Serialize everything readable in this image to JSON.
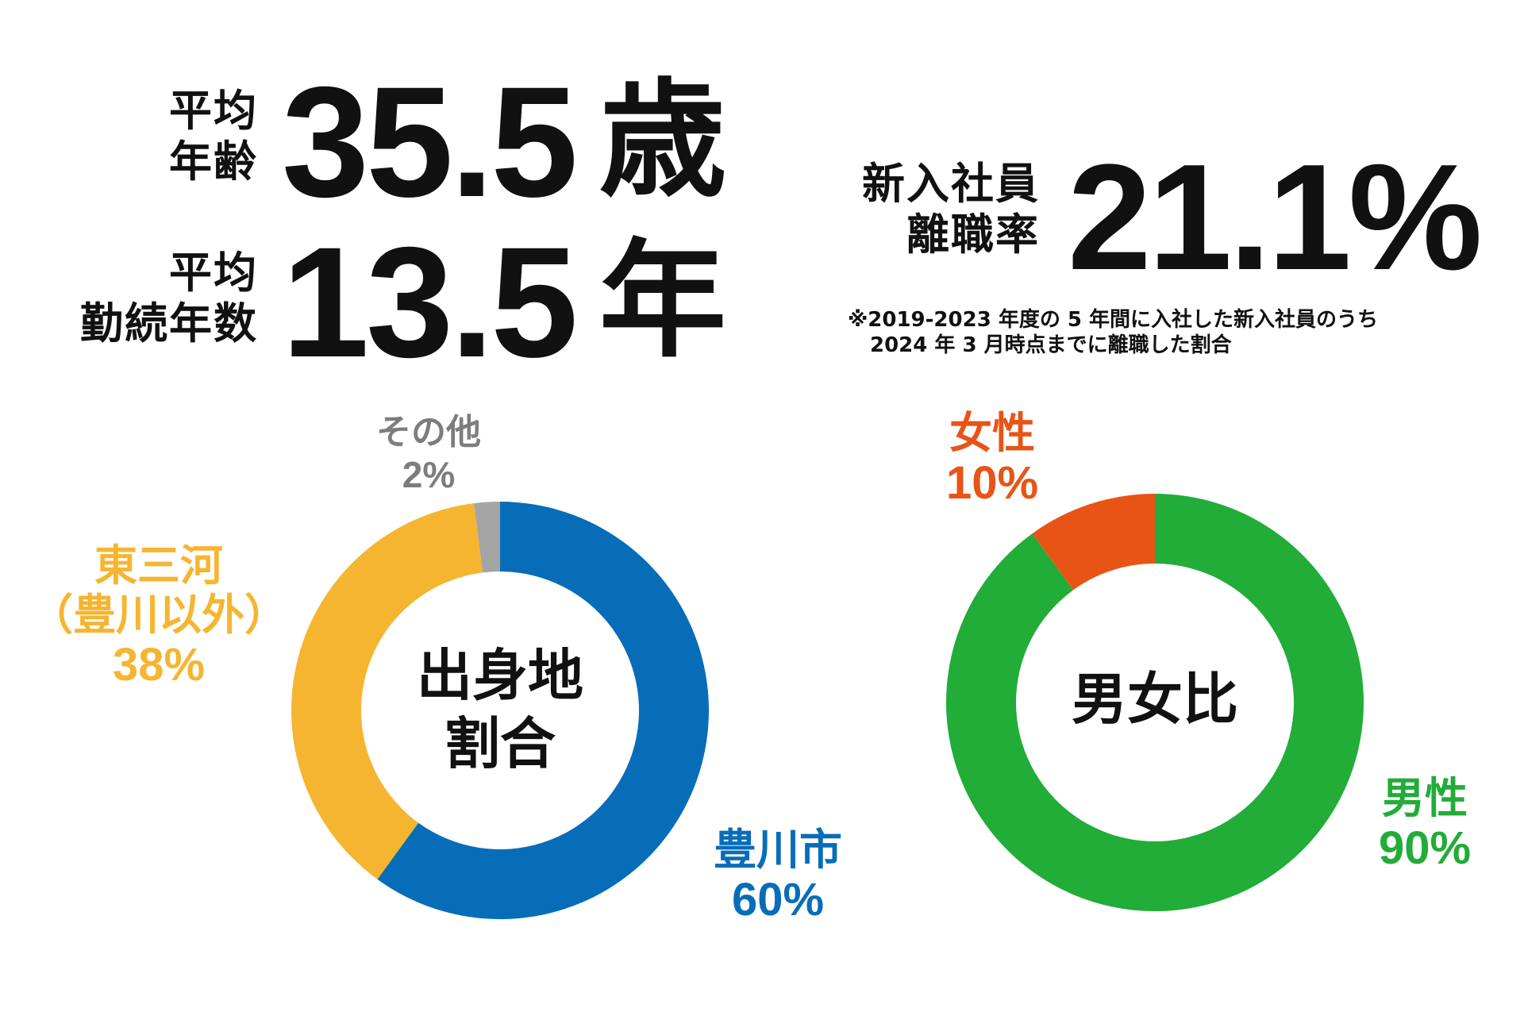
{
  "stats": {
    "age": {
      "label_line1": "平均",
      "label_line2": "年齢",
      "value": "35.5",
      "unit": "歳"
    },
    "tenure": {
      "label_line1": "平均",
      "label_line2": "勤続年数",
      "value": "13.5",
      "unit": "年"
    },
    "turnover": {
      "label_line1": "新入社員",
      "label_line2": "離職率",
      "value": "21.1%",
      "note_line1": "※2019-2023 年度の 5 年間に入社した新入社員のうち",
      "note_line2": "2024 年 3 月時点までに離職した割合"
    }
  },
  "chart_data": [
    {
      "type": "pie",
      "center_label_line1": "出身地",
      "center_label_line2": "割合",
      "slices": [
        {
          "name": "豊川市",
          "name_line2": "",
          "value": 60,
          "value_label": "60%",
          "color": "#086db9"
        },
        {
          "name": "東三河",
          "name_line2": "（豊川以外）",
          "value": 38,
          "value_label": "38%",
          "color": "#f6b531"
        },
        {
          "name": "その他",
          "name_line2": "",
          "value": 2,
          "value_label": "2%",
          "color": "#a4a4a4"
        }
      ]
    },
    {
      "type": "pie",
      "center_label_line1": "男女比",
      "slices": [
        {
          "name": "男性",
          "value": 90,
          "value_label": "90%",
          "color": "#22ac38"
        },
        {
          "name": "女性",
          "value": 10,
          "value_label": "10%",
          "color": "#e85416"
        }
      ]
    }
  ]
}
